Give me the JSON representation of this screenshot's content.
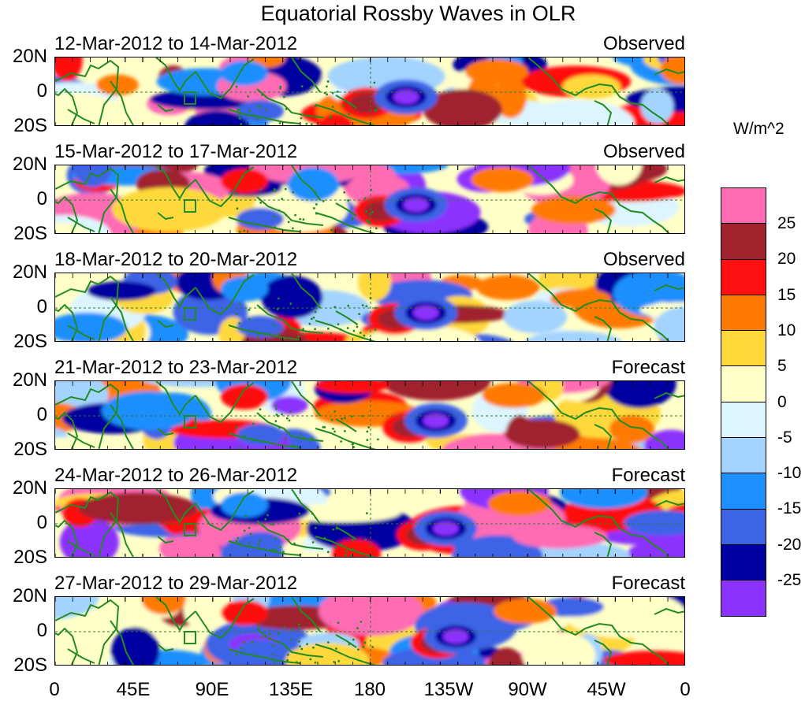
{
  "title": "Equatorial Rossby Waves in OLR",
  "units_label": "W/m^2",
  "panels": [
    {
      "date_range": "12-Mar-2012 to 14-Mar-2012",
      "kind": "Observed"
    },
    {
      "date_range": "15-Mar-2012 to 17-Mar-2012",
      "kind": "Observed"
    },
    {
      "date_range": "18-Mar-2012 to 20-Mar-2012",
      "kind": "Observed"
    },
    {
      "date_range": "21-Mar-2012 to 23-Mar-2012",
      "kind": "Forecast"
    },
    {
      "date_range": "24-Mar-2012 to 26-Mar-2012",
      "kind": "Forecast"
    },
    {
      "date_range": "27-Mar-2012 to 29-Mar-2012",
      "kind": "Forecast"
    }
  ],
  "lat_labels": [
    "20N",
    "0",
    "20S"
  ],
  "lon_labels": [
    "0",
    "45E",
    "90E",
    "135E",
    "180",
    "135W",
    "90W",
    "45W",
    "0"
  ],
  "colorbar": {
    "labels": [
      "25",
      "20",
      "15",
      "10",
      "5",
      "0",
      "-5",
      "-10",
      "-15",
      "-20",
      "-25"
    ],
    "colors": [
      "#ff6cb4",
      "#a0232d",
      "#ff1010",
      "#ff7a00",
      "#ffd93a",
      "#ffffc8",
      "#dcf5ff",
      "#a3d3ff",
      "#1e8fff",
      "#3c64e6",
      "#0000a0",
      "#8c32ff"
    ]
  },
  "map_colors": {
    "coast": "#228b22",
    "equator_line": "#2e7d32",
    "dateline": "#2e7d32"
  }
}
